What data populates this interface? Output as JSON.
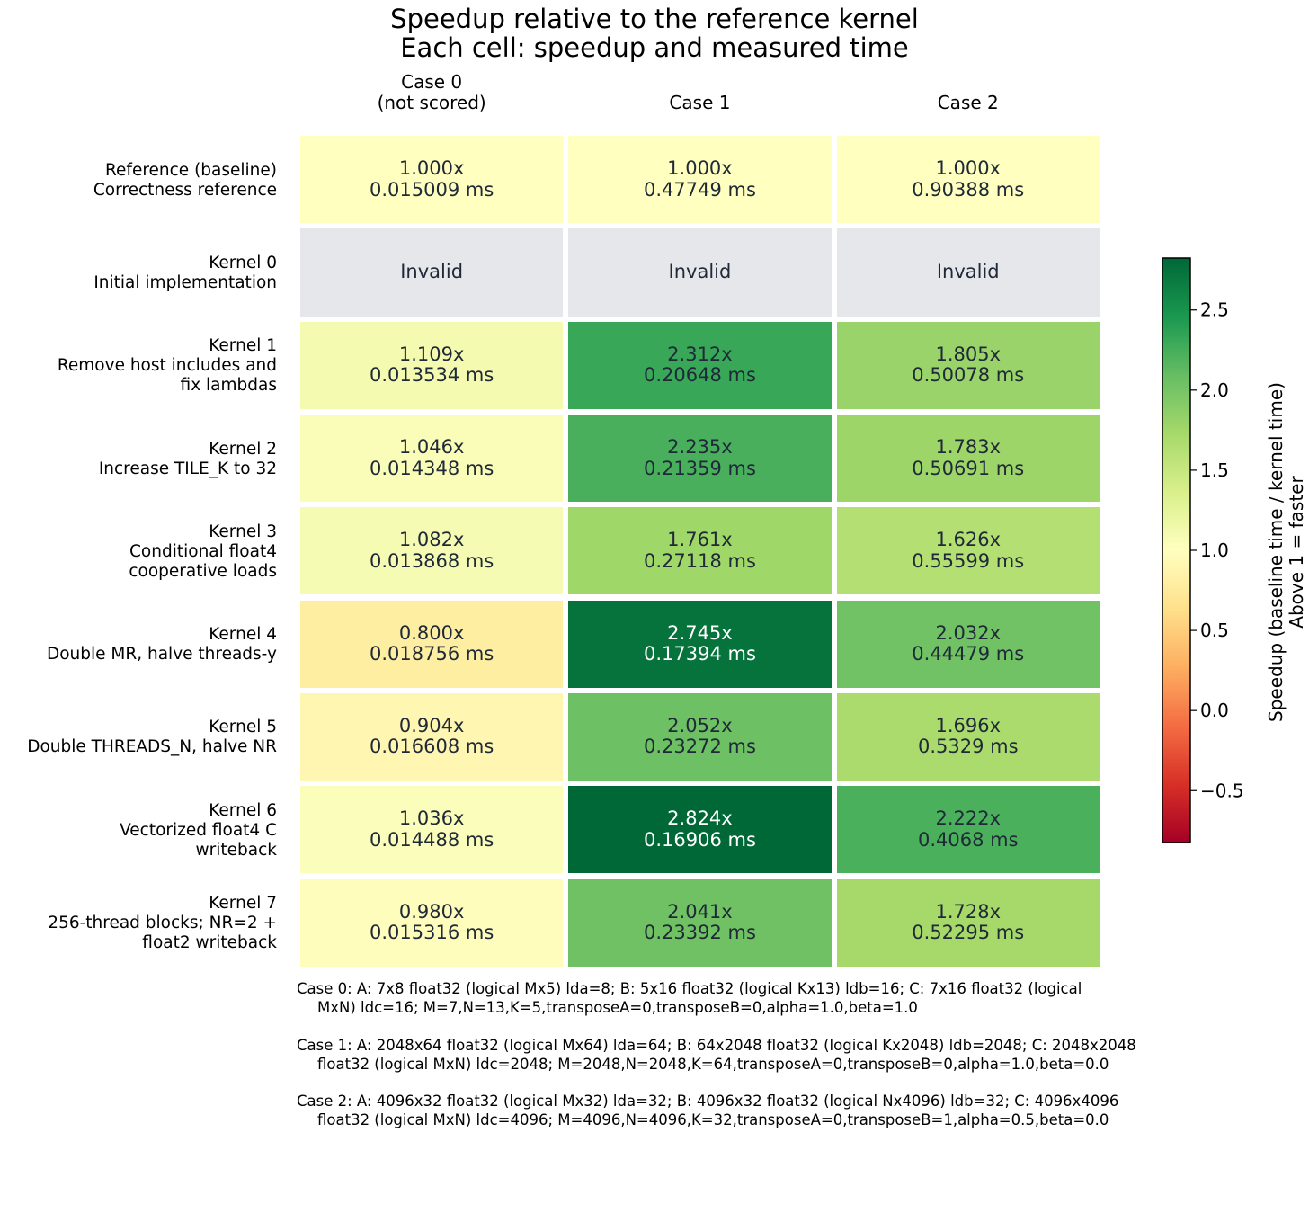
{
  "chart_data": {
    "type": "heatmap",
    "title": "Speedup relative to the reference kernel",
    "subtitle": "Each cell: speedup and measured time",
    "columns": [
      "Case 0\n(not scored)",
      "Case 1",
      "Case 2"
    ],
    "rows": [
      "Reference (baseline)\nCorrectness reference",
      "Kernel 0\nInitial implementation",
      "Kernel 1\nRemove host includes and\nfix lambdas",
      "Kernel 2\nIncrease TILE_K to 32",
      "Kernel 3\nConditional float4\ncooperative loads",
      "Kernel 4\nDouble MR, halve threads-y",
      "Kernel 5\nDouble THREADS_N, halve NR",
      "Kernel 6\nVectorized float4 C\nwriteback",
      "Kernel 7\n256-thread blocks; NR=2 +\nfloat2 writeback"
    ],
    "cells": [
      [
        {
          "speedup": 1.0,
          "speedup_text": "1.000x",
          "time_text": "0.015009 ms"
        },
        {
          "speedup": 1.0,
          "speedup_text": "1.000x",
          "time_text": "0.47749 ms"
        },
        {
          "speedup": 1.0,
          "speedup_text": "1.000x",
          "time_text": "0.90388 ms"
        }
      ],
      [
        {
          "speedup": null,
          "speedup_text": "Invalid",
          "time_text": ""
        },
        {
          "speedup": null,
          "speedup_text": "Invalid",
          "time_text": ""
        },
        {
          "speedup": null,
          "speedup_text": "Invalid",
          "time_text": ""
        }
      ],
      [
        {
          "speedup": 1.109,
          "speedup_text": "1.109x",
          "time_text": "0.013534 ms"
        },
        {
          "speedup": 2.312,
          "speedup_text": "2.312x",
          "time_text": "0.20648 ms"
        },
        {
          "speedup": 1.805,
          "speedup_text": "1.805x",
          "time_text": "0.50078 ms"
        }
      ],
      [
        {
          "speedup": 1.046,
          "speedup_text": "1.046x",
          "time_text": "0.014348 ms"
        },
        {
          "speedup": 2.235,
          "speedup_text": "2.235x",
          "time_text": "0.21359 ms"
        },
        {
          "speedup": 1.783,
          "speedup_text": "1.783x",
          "time_text": "0.50691 ms"
        }
      ],
      [
        {
          "speedup": 1.082,
          "speedup_text": "1.082x",
          "time_text": "0.013868 ms"
        },
        {
          "speedup": 1.761,
          "speedup_text": "1.761x",
          "time_text": "0.27118 ms"
        },
        {
          "speedup": 1.626,
          "speedup_text": "1.626x",
          "time_text": "0.55599 ms"
        }
      ],
      [
        {
          "speedup": 0.8,
          "speedup_text": "0.800x",
          "time_text": "0.018756 ms"
        },
        {
          "speedup": 2.745,
          "speedup_text": "2.745x",
          "time_text": "0.17394 ms"
        },
        {
          "speedup": 2.032,
          "speedup_text": "2.032x",
          "time_text": "0.44479 ms"
        }
      ],
      [
        {
          "speedup": 0.904,
          "speedup_text": "0.904x",
          "time_text": "0.016608 ms"
        },
        {
          "speedup": 2.052,
          "speedup_text": "2.052x",
          "time_text": "0.23272 ms"
        },
        {
          "speedup": 1.696,
          "speedup_text": "1.696x",
          "time_text": "0.5329 ms"
        }
      ],
      [
        {
          "speedup": 1.036,
          "speedup_text": "1.036x",
          "time_text": "0.014488 ms"
        },
        {
          "speedup": 2.824,
          "speedup_text": "2.824x",
          "time_text": "0.16906 ms"
        },
        {
          "speedup": 2.222,
          "speedup_text": "2.222x",
          "time_text": "0.4068 ms"
        }
      ],
      [
        {
          "speedup": 0.98,
          "speedup_text": "0.980x",
          "time_text": "0.015316 ms"
        },
        {
          "speedup": 2.041,
          "speedup_text": "2.041x",
          "time_text": "0.23392 ms"
        },
        {
          "speedup": 1.728,
          "speedup_text": "1.728x",
          "time_text": "0.52295 ms"
        }
      ]
    ],
    "colorbar": {
      "label_line1": "Speedup (baseline time / kernel time)",
      "label_line2": "Above 1 = faster",
      "range": [
        -0.824,
        2.824
      ],
      "ticks": [
        -0.5,
        0.0,
        0.5,
        1.0,
        1.5,
        2.0,
        2.5
      ],
      "tick_labels": [
        "−0.5",
        "0.0",
        "0.5",
        "1.0",
        "1.5",
        "2.0",
        "2.5"
      ],
      "colormap": "RdYlGn"
    },
    "invalid_color": "#e5e7eb",
    "footnotes": [
      {
        "line1": "Case 0: A: 7x8 float32 (logical Mx5) lda=8; B: 5x16 float32 (logical Kx13) ldb=16; C: 7x16 float32 (logical",
        "line2": "MxN) ldc=16; M=7,N=13,K=5,transposeA=0,transposeB=0,alpha=1.0,beta=1.0"
      },
      {
        "line1": "Case 1: A: 2048x64 float32 (logical Mx64) lda=64; B: 64x2048 float32 (logical Kx2048) ldb=2048; C: 2048x2048",
        "line2": "float32 (logical MxN) ldc=2048; M=2048,N=2048,K=64,transposeA=0,transposeB=0,alpha=1.0,beta=0.0"
      },
      {
        "line1": "Case 2: A: 4096x32 float32 (logical Mx32) lda=32; B: 4096x32 float32 (logical Nx4096) ldb=32; C: 4096x4096",
        "line2": "float32 (logical MxN) ldc=4096; M=4096,N=4096,K=32,transposeA=0,transposeB=1,alpha=0.5,beta=0.0"
      }
    ]
  }
}
